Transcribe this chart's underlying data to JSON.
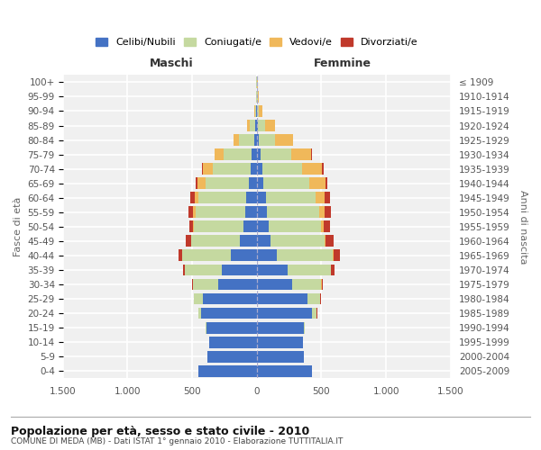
{
  "age_groups": [
    "100+",
    "95-99",
    "90-94",
    "85-89",
    "80-84",
    "75-79",
    "70-74",
    "65-69",
    "60-64",
    "55-59",
    "50-54",
    "45-49",
    "40-44",
    "35-39",
    "30-34",
    "25-29",
    "20-24",
    "15-19",
    "10-14",
    "5-9",
    "0-4"
  ],
  "birth_years": [
    "≤ 1909",
    "1910-1914",
    "1915-1919",
    "1920-1924",
    "1925-1929",
    "1930-1934",
    "1935-1939",
    "1940-1944",
    "1945-1949",
    "1950-1954",
    "1955-1959",
    "1960-1964",
    "1965-1969",
    "1970-1974",
    "1975-1979",
    "1980-1984",
    "1985-1989",
    "1990-1994",
    "1995-1999",
    "2000-2004",
    "2005-2009"
  ],
  "males_celibe": [
    2,
    2,
    5,
    10,
    20,
    40,
    50,
    60,
    80,
    90,
    100,
    130,
    200,
    270,
    300,
    420,
    430,
    390,
    370,
    385,
    455
  ],
  "males_coniugato": [
    1,
    2,
    8,
    45,
    115,
    220,
    290,
    335,
    375,
    385,
    385,
    375,
    375,
    285,
    195,
    65,
    25,
    4,
    1,
    0,
    0
  ],
  "males_vedovo": [
    0,
    1,
    6,
    18,
    45,
    65,
    75,
    65,
    28,
    18,
    8,
    4,
    2,
    1,
    0,
    0,
    0,
    0,
    0,
    0,
    0
  ],
  "males_divorziato": [
    0,
    0,
    0,
    0,
    1,
    4,
    7,
    13,
    32,
    38,
    28,
    38,
    28,
    18,
    8,
    2,
    0,
    0,
    0,
    0,
    0
  ],
  "females_nubile": [
    1,
    2,
    4,
    8,
    18,
    32,
    45,
    52,
    68,
    78,
    92,
    108,
    152,
    238,
    275,
    395,
    425,
    365,
    355,
    365,
    425
  ],
  "females_coniugata": [
    2,
    4,
    12,
    55,
    125,
    235,
    305,
    355,
    385,
    405,
    405,
    415,
    435,
    335,
    225,
    95,
    40,
    8,
    1,
    0,
    0
  ],
  "females_vedova": [
    2,
    6,
    28,
    75,
    135,
    155,
    155,
    125,
    75,
    45,
    22,
    12,
    6,
    2,
    1,
    0,
    0,
    0,
    0,
    0,
    0
  ],
  "females_divorziata": [
    0,
    0,
    0,
    1,
    3,
    6,
    10,
    16,
    38,
    48,
    48,
    58,
    48,
    28,
    13,
    4,
    1,
    0,
    0,
    0,
    0
  ],
  "color_celibe": "#4472c4",
  "color_coniugato": "#c5d9a0",
  "color_vedovo": "#f0b85a",
  "color_divorziato": "#c0392b",
  "bg_color": "#f0f0f0",
  "grid_color": "#ffffff",
  "title_main": "Popolazione per età, sesso e stato civile - 2010",
  "title_sub": "COMUNE DI MEDA (MB) - Dati ISTAT 1° gennaio 2010 - Elaborazione TUTTITALIA.IT",
  "ylabel_left": "Fasce di età",
  "ylabel_right": "Anni di nascita",
  "header_maschi": "Maschi",
  "header_femmine": "Femmine",
  "xlim": 1500,
  "xticks": [
    -1500,
    -1000,
    -500,
    0,
    500,
    1000,
    1500
  ],
  "xticklabels": [
    "1.500",
    "1.000",
    "500",
    "0",
    "500",
    "1.000",
    "1.500"
  ],
  "legend_labels": [
    "Celibi/Nubili",
    "Coniugati/e",
    "Vedovi/e",
    "Divorziati/e"
  ]
}
